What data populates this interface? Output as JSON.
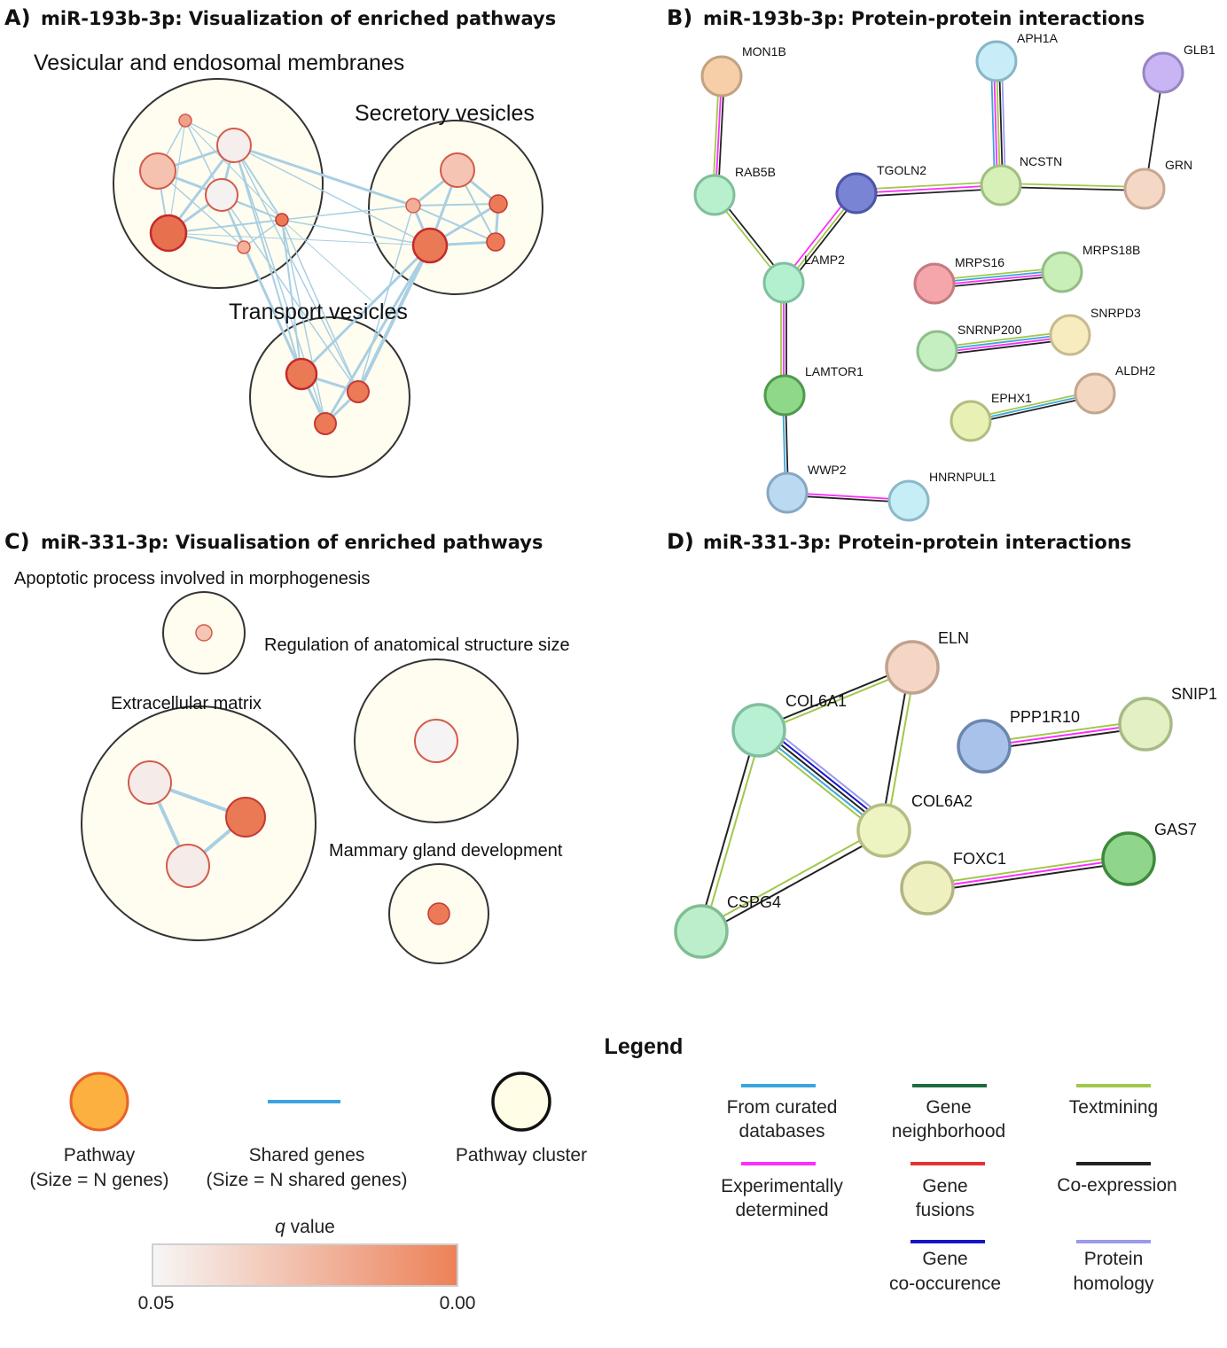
{
  "panels": {
    "a": {
      "letter": "A)",
      "title": "miR-193b-3p: Visualization of enriched pathways",
      "clusters": [
        "Vesicular and endosomal membranes",
        "Secretory vesicles",
        "Transport vesicles"
      ]
    },
    "b": {
      "letter": "B)",
      "title": "miR-193b-3p: Protein-protein interactions",
      "proteins": [
        "MON1B",
        "APH1A",
        "GLB1",
        "RAB5B",
        "TGOLN2",
        "NCSTN",
        "GRN",
        "LAMP2",
        "MRPS16",
        "MRPS18B",
        "SNRNP200",
        "SNRPD3",
        "LAMTOR1",
        "EPHX1",
        "ALDH2",
        "WWP2",
        "HNRNPUL1"
      ]
    },
    "c": {
      "letter": "C)",
      "title": "miR-331-3p: Visualisation of enriched pathways",
      "clusters": [
        "Apoptotic process involved in morphogenesis",
        "Regulation of anatomical structure size",
        "Extracellular matrix",
        "Mammary gland development"
      ]
    },
    "d": {
      "letter": "D)",
      "title": "miR-331-3p: Protein-protein interactions",
      "proteins": [
        "ELN",
        "COL6A1",
        "PPP1R10",
        "SNIP1",
        "COL6A2",
        "GAS7",
        "FOXC1",
        "CSPG4"
      ]
    }
  },
  "legend": {
    "title": "Legend",
    "pathway": [
      "Pathway",
      "(Size = N genes)"
    ],
    "shared_genes": [
      "Shared genes",
      "(Size = N shared genes)"
    ],
    "cluster": "Pathway cluster",
    "q_value": {
      "symbol": "q",
      "label": " value",
      "min": "0.05",
      "max": "0.00"
    },
    "edge_types": [
      {
        "lines": [
          "From curated",
          "databases"
        ],
        "color": "#3aa6dc"
      },
      {
        "lines": [
          "Gene",
          "neighborhood"
        ],
        "color": "#1f6b3f"
      },
      {
        "lines": [
          "Textmining"
        ],
        "color": "#a0c84a"
      },
      {
        "lines": [
          "Experimentally",
          "determined"
        ],
        "color": "#ff2cff"
      },
      {
        "lines": [
          "Gene",
          "fusions"
        ],
        "color": "#e83030"
      },
      {
        "lines": [
          "Co-expression"
        ],
        "color": "#222222"
      },
      {
        "lines": [
          "Gene",
          "co-occurence"
        ],
        "color": "#1515c8"
      },
      {
        "lines": [
          "Protein",
          "homology"
        ],
        "color": "#9a9aef"
      }
    ]
  },
  "colors": {
    "accent": "#ec8159",
    "cluster_fill": "#fffdf0",
    "shared_edge": "#a9cfe3",
    "legend_pathway": "#fbb040",
    "legend_pathway_stroke": "#e8612c",
    "legend_shared": "#3ba4e0"
  }
}
